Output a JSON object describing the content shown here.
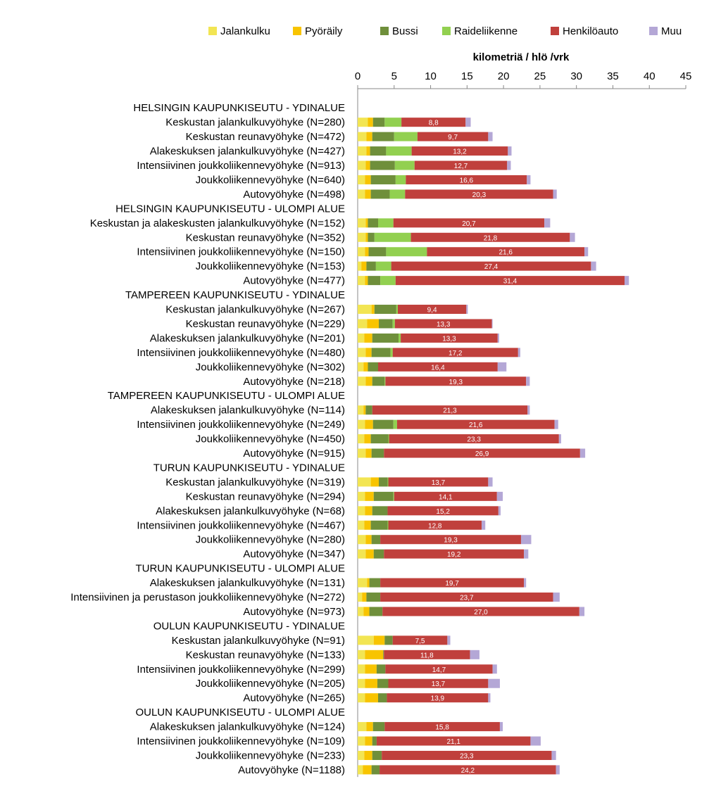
{
  "chart_data": {
    "type": "bar",
    "stacked": true,
    "orientation": "horizontal",
    "title": "",
    "xlabel": "kilometriä / hlö /vrk",
    "ylabel": "",
    "xlim": [
      0,
      45
    ],
    "xticks": [
      0,
      5,
      10,
      15,
      20,
      25,
      30,
      35,
      40,
      45
    ],
    "grid": false,
    "legend_position": "top-right",
    "legend": [
      {
        "name": "Jalankulku",
        "color": "#f2e553"
      },
      {
        "name": "Pyöräily",
        "color": "#f8c400"
      },
      {
        "name": "Bussi",
        "color": "#6f8f3b"
      },
      {
        "name": "Raideliikenne",
        "color": "#92d050"
      },
      {
        "name": "Henkilöauto",
        "color": "#c0403c"
      },
      {
        "name": "Muu",
        "color": "#b4a7d6"
      }
    ],
    "categories": [
      {
        "label": "HELSINGIN KAUPUNKISEUTU - YDINALUE",
        "header": true
      },
      {
        "label": "Keskustan jalankulkuvyöhyke (N=280)",
        "values": [
          1.4,
          0.7,
          1.6,
          2.3,
          8.8,
          0.7
        ],
        "car_label": "8,8"
      },
      {
        "label": "Keskustan reunavyöhyke (N=472)",
        "values": [
          1.2,
          0.8,
          3.0,
          3.2,
          9.7,
          0.6
        ],
        "car_label": "9,7"
      },
      {
        "label": "Alakeskuksen jalankulkuvyöhyke (N=427)",
        "values": [
          1.2,
          0.5,
          2.2,
          3.5,
          13.2,
          0.5
        ],
        "car_label": "13,2"
      },
      {
        "label": "Intensiivinen joukkoliikennevyöhyke (N=913)",
        "values": [
          1.1,
          0.6,
          3.4,
          2.7,
          12.7,
          0.5
        ],
        "car_label": "12,7"
      },
      {
        "label": "Joukkoliikennevyöhyke (N=640)",
        "values": [
          1.0,
          0.8,
          3.4,
          1.4,
          16.6,
          0.5
        ],
        "car_label": "16,6"
      },
      {
        "label": "Autovyöhyke (N=498)",
        "values": [
          1.0,
          0.8,
          2.6,
          2.1,
          20.3,
          0.5
        ],
        "car_label": "20,3"
      },
      {
        "label": "HELSINGIN KAUPUNKISEUTU - ULOMPI ALUE",
        "header": true
      },
      {
        "label": "Keskustan ja alakeskusten jalankulkuvyöhyke (N=152)",
        "values": [
          1.1,
          0.3,
          1.4,
          2.1,
          20.7,
          0.8
        ],
        "car_label": "20,7"
      },
      {
        "label": "Keskustan reunavyöhyke (N=352)",
        "values": [
          1.1,
          0.3,
          0.9,
          5.0,
          21.8,
          0.7
        ],
        "car_label": "21,8"
      },
      {
        "label": "Intensiivinen joukkoliikennevyöhyke (N=150)",
        "values": [
          1.0,
          0.5,
          2.4,
          5.6,
          21.6,
          0.5
        ],
        "car_label": "21,6"
      },
      {
        "label": "Joukkoliikennevyöhyke (N=153)",
        "values": [
          0.5,
          0.7,
          1.3,
          2.1,
          27.4,
          0.7
        ],
        "car_label": "27,4"
      },
      {
        "label": "Autovyöhyke (N=477)",
        "values": [
          1.0,
          0.4,
          1.7,
          2.1,
          31.4,
          0.6
        ],
        "car_label": "31,4"
      },
      {
        "label": "TAMPEREEN KAUPUNKISEUTU - YDINALUE",
        "header": true
      },
      {
        "label": "Keskustan jalankulkuvyöhyke (N=267)",
        "values": [
          1.9,
          0.4,
          3.0,
          0.2,
          9.4,
          0.2
        ],
        "car_label": "9,4"
      },
      {
        "label": "Keskustan reunavyöhyke (N=229)",
        "values": [
          1.3,
          1.6,
          1.9,
          0.3,
          13.3,
          0.1
        ],
        "car_label": "13,3"
      },
      {
        "label": "Alakeskuksen jalankulkuvyöhyke (N=201)",
        "values": [
          0.9,
          1.1,
          3.6,
          0.3,
          13.3,
          0.2
        ],
        "car_label": "13,3"
      },
      {
        "label": "Intensiivinen joukkoliikennevyöhyke (N=480)",
        "values": [
          1.1,
          0.8,
          2.6,
          0.3,
          17.2,
          0.3
        ],
        "car_label": "17,2"
      },
      {
        "label": "Joukkoliikennevyöhyke (N=302)",
        "values": [
          0.8,
          0.6,
          1.4,
          0.0,
          16.4,
          1.2
        ],
        "car_label": "16,4"
      },
      {
        "label": "Autovyöhyke (N=218)",
        "values": [
          1.1,
          0.9,
          1.7,
          0.1,
          19.3,
          0.5
        ],
        "car_label": "19,3"
      },
      {
        "label": "TAMPEREEN KAUPUNKISEUTU - ULOMPI ALUE",
        "header": true
      },
      {
        "label": "Alakeskuksen jalankulkuvyöhyke (N=114)",
        "values": [
          0.8,
          0.3,
          0.9,
          0.0,
          21.3,
          0.3
        ],
        "car_label": "21,3"
      },
      {
        "label": "Intensiivinen joukkoliikennevyöhyke (N=249)",
        "values": [
          1.0,
          1.1,
          2.8,
          0.5,
          21.6,
          0.5
        ],
        "car_label": "21,6"
      },
      {
        "label": "Joukkoliikennevyöhyke (N=450)",
        "values": [
          0.9,
          0.9,
          2.4,
          0.1,
          23.3,
          0.3
        ],
        "car_label": "23,3"
      },
      {
        "label": "Autovyöhyke (N=915)",
        "values": [
          1.1,
          0.8,
          1.7,
          0.0,
          26.9,
          0.7
        ],
        "car_label": "26,9"
      },
      {
        "label": "TURUN KAUPUNKISEUTU - YDINALUE",
        "header": true
      },
      {
        "label": "Keskustan jalankulkuvyöhyke (N=319)",
        "values": [
          1.8,
          1.1,
          1.2,
          0.1,
          13.7,
          0.6
        ],
        "car_label": "13,7"
      },
      {
        "label": "Keskustan reunavyöhyke (N=294)",
        "values": [
          1.0,
          1.2,
          2.7,
          0.1,
          14.1,
          0.8
        ],
        "car_label": "14,1"
      },
      {
        "label": "Alakeskuksen jalankulkuvyöhyke (N=68)",
        "values": [
          1.0,
          1.0,
          2.1,
          0.0,
          15.2,
          0.3
        ],
        "car_label": "15,2"
      },
      {
        "label": "Intensiivinen joukkoliikennevyöhyke (N=467)",
        "values": [
          0.9,
          0.9,
          2.3,
          0.1,
          12.8,
          0.5
        ],
        "car_label": "12,8"
      },
      {
        "label": "Joukkoliikennevyöhyke (N=280)",
        "values": [
          1.1,
          0.8,
          1.2,
          0.0,
          19.3,
          1.4
        ],
        "car_label": "19,3"
      },
      {
        "label": "Autovyöhyke (N=347)",
        "values": [
          1.1,
          1.1,
          1.4,
          0.0,
          19.2,
          0.6
        ],
        "car_label": "19,2"
      },
      {
        "label": "TURUN KAUPUNKISEUTU - ULOMPI ALUE",
        "header": true
      },
      {
        "label": "Alakeskuksen jalankulkuvyöhyke (N=131)",
        "values": [
          1.3,
          0.3,
          1.5,
          0.0,
          19.7,
          0.3
        ],
        "car_label": "19,7"
      },
      {
        "label": "Intensiivinen ja perustason joukkoliikennevyöhyke (N=272)",
        "values": [
          0.6,
          0.6,
          1.9,
          0.0,
          23.7,
          0.9
        ],
        "car_label": "23,7"
      },
      {
        "label": "Autovyöhyke (N=973)",
        "values": [
          0.8,
          0.8,
          1.8,
          0.0,
          27.0,
          0.7
        ],
        "car_label": "27,0"
      },
      {
        "label": "OULUN KAUPUNKISEUTU - YDINALUE",
        "header": true
      },
      {
        "label": "Keskustan jalankulkuvyöhyke (N=91)",
        "values": [
          2.2,
          1.5,
          1.1,
          0.0,
          7.5,
          0.4
        ],
        "car_label": "7,5"
      },
      {
        "label": "Keskustan reunavyöhyke (N=133)",
        "values": [
          1.0,
          2.5,
          0.1,
          0.0,
          11.8,
          1.3
        ],
        "car_label": "11,8"
      },
      {
        "label": "Intensiivinen joukkoliikennevyöhyke (N=299)",
        "values": [
          1.0,
          1.6,
          1.2,
          0.0,
          14.7,
          0.6
        ],
        "car_label": "14,7"
      },
      {
        "label": "Joukkoliikennevyöhyke (N=205)",
        "values": [
          1.0,
          1.7,
          1.5,
          0.0,
          13.7,
          1.6
        ],
        "car_label": "13,7"
      },
      {
        "label": "Autovyöhyke (N=265)",
        "values": [
          1.0,
          1.8,
          1.2,
          0.0,
          13.9,
          0.3
        ],
        "car_label": "13,9"
      },
      {
        "label": "OULUN KAUPUNKISEUTU - ULOMPI ALUE",
        "header": true
      },
      {
        "label": "Alakeskuksen jalankulkuvyöhyke (N=124)",
        "values": [
          1.2,
          0.9,
          1.6,
          0.0,
          15.8,
          0.4
        ],
        "car_label": "15,8"
      },
      {
        "label": "Intensiivinen joukkoliikennevyöhyke (N=109)",
        "values": [
          1.0,
          1.0,
          0.6,
          0.0,
          21.1,
          1.4
        ],
        "car_label": "21,1"
      },
      {
        "label": "Joukkoliikennevyöhyke (N=233)",
        "values": [
          0.9,
          1.1,
          1.3,
          0.0,
          23.3,
          0.6
        ],
        "car_label": "23,3"
      },
      {
        "label": "Autovyöhyke (N=1188)",
        "values": [
          0.7,
          1.2,
          1.1,
          0.0,
          24.2,
          0.5
        ],
        "car_label": "24,2"
      }
    ]
  }
}
